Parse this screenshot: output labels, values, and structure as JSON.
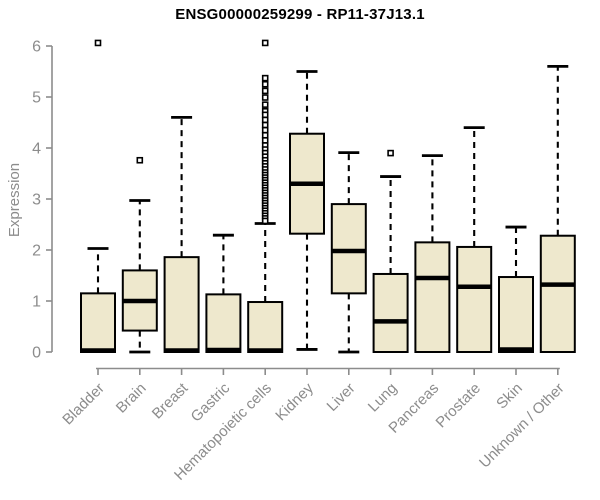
{
  "page": {
    "title": "ENSG00000259299 - RP11-37J13.1"
  },
  "chart_data": {
    "type": "box",
    "title": "ENSG00000259299 - RP11-37J13.1",
    "ylabel": "Expression",
    "xlabel": "",
    "ylim": [
      0,
      6
    ],
    "yticks": [
      0,
      1,
      2,
      3,
      4,
      5,
      6
    ],
    "grid": false,
    "legend_position": "none",
    "categories": [
      "Bladder",
      "Brain",
      "Breast",
      "Gastric",
      "Hematopoietic cells",
      "Kidney",
      "Liver",
      "Lung",
      "Pancreas",
      "Prostate",
      "Skin",
      "Unknown / Other"
    ],
    "series": [
      {
        "name": "Bladder",
        "low": 0,
        "q1": 0,
        "median": 0.03,
        "q3": 1.15,
        "high": 2.03,
        "outliers": [
          6.06
        ]
      },
      {
        "name": "Brain",
        "low": 0,
        "q1": 0.42,
        "median": 1.0,
        "q3": 1.6,
        "high": 2.97,
        "outliers": [
          3.76
        ]
      },
      {
        "name": "Breast",
        "low": 0,
        "q1": 0,
        "median": 0.03,
        "q3": 1.86,
        "high": 4.6,
        "outliers": []
      },
      {
        "name": "Gastric",
        "low": 0,
        "q1": 0,
        "median": 0.04,
        "q3": 1.13,
        "high": 2.29,
        "outliers": []
      },
      {
        "name": "Hematopoietic cells",
        "low": 0,
        "q1": 0,
        "median": 0.03,
        "q3": 0.98,
        "high": 2.52,
        "outliers": [
          6.06,
          5.37,
          5.25,
          5.12,
          4.99,
          4.85,
          4.72,
          4.65,
          4.55,
          4.45,
          4.35,
          4.25,
          4.15,
          4.05,
          3.97,
          3.9,
          3.83,
          3.76,
          3.7,
          3.64,
          3.58,
          3.52,
          3.47,
          3.42,
          3.37,
          3.32,
          3.27,
          3.22,
          3.17,
          3.12,
          3.07,
          3.02,
          2.97,
          2.92,
          2.87,
          2.82,
          2.77,
          2.72,
          2.67,
          2.62,
          2.57
        ]
      },
      {
        "name": "Kidney",
        "low": 0.05,
        "q1": 2.32,
        "median": 3.3,
        "q3": 4.28,
        "high": 5.5,
        "outliers": []
      },
      {
        "name": "Liver",
        "low": 0,
        "q1": 1.15,
        "median": 1.98,
        "q3": 2.9,
        "high": 3.91,
        "outliers": []
      },
      {
        "name": "Lung",
        "low": 0,
        "q1": 0,
        "median": 0.6,
        "q3": 1.53,
        "high": 3.44,
        "outliers": [
          3.9
        ]
      },
      {
        "name": "Pancreas",
        "low": 0,
        "q1": 0,
        "median": 1.45,
        "q3": 2.15,
        "high": 3.85,
        "outliers": []
      },
      {
        "name": "Prostate",
        "low": 0,
        "q1": 0,
        "median": 1.28,
        "q3": 2.06,
        "high": 4.4,
        "outliers": []
      },
      {
        "name": "Skin",
        "low": 0,
        "q1": 0,
        "median": 0.05,
        "q3": 1.47,
        "high": 2.45,
        "outliers": []
      },
      {
        "name": "Unknown / Other",
        "low": 0,
        "q1": 0,
        "median": 1.32,
        "q3": 2.28,
        "high": 5.6,
        "outliers": []
      }
    ],
    "colors": {
      "box_fill": "#EEE8CD",
      "box_stroke": "#000000",
      "median": "#000000",
      "whisker": "#000000",
      "outlier_fill": "#FFFFFF",
      "axis": "#8C8C8C",
      "title_color": "#000000",
      "background": "#FFFFFF"
    }
  }
}
